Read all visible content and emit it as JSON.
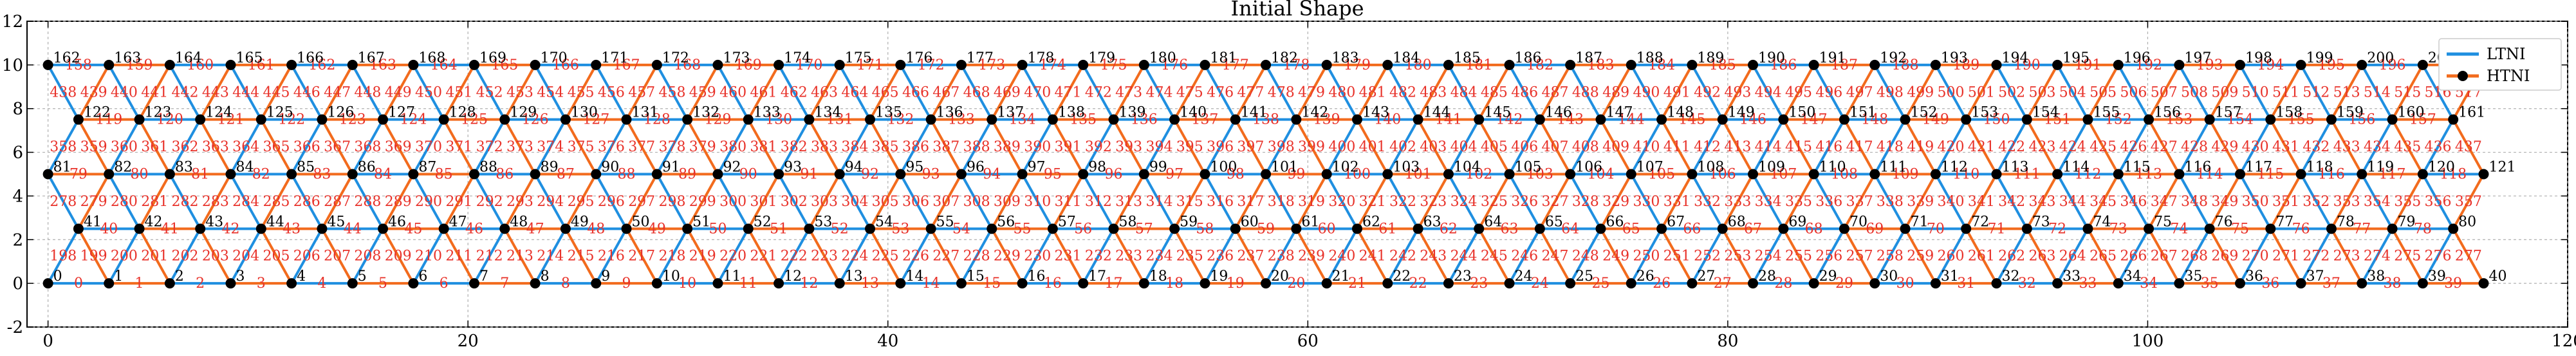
{
  "chart_data": {
    "type": "line",
    "title": "Initial Shape",
    "xlabel": "",
    "ylabel": "",
    "xlim": [
      -1,
      120
    ],
    "ylim": [
      -2,
      12
    ],
    "xticks": [
      0,
      20,
      40,
      60,
      80,
      100,
      120
    ],
    "yticks": [
      -2,
      0,
      2,
      4,
      6,
      8,
      10,
      12
    ],
    "grid": true,
    "legend_position": "top-right",
    "lattice": {
      "description_rows": [
        {
          "y": 0,
          "x_start": 0,
          "x_step": 2.9,
          "count": 41,
          "first_id": 0
        },
        {
          "y": 5,
          "x_start": 0,
          "x_step": 2.9,
          "count": 41,
          "first_id": 81
        },
        {
          "y": 10,
          "x_start": 0,
          "x_step": 2.9,
          "count": 41,
          "first_id": 162
        }
      ],
      "offset_rows": [
        {
          "y": 2.5,
          "x_start": 1.45,
          "x_step": 2.9,
          "count": 40,
          "first_id": 41
        },
        {
          "y": 7.5,
          "x_start": 1.45,
          "x_step": 2.9,
          "count": 40,
          "first_id": 122
        }
      ]
    },
    "series": [
      {
        "name": "LTNI",
        "color": "#1f8fe0"
      },
      {
        "name": "HTNI",
        "color": "#f26b1d"
      }
    ]
  },
  "colors": {
    "ltni": "#1f8fe0",
    "htni": "#f26b1d",
    "node": "#000000",
    "edge_label": "#e8322a",
    "grid": "#b0b0b0"
  }
}
